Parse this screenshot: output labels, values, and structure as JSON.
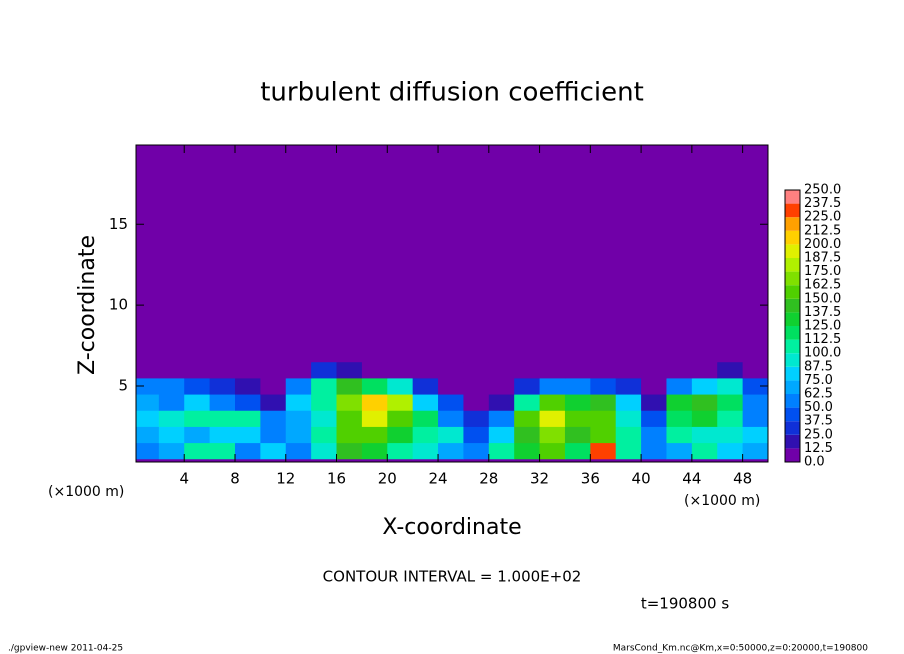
{
  "chart_data": {
    "type": "heatmap",
    "title": "turbulent diffusion coefficient",
    "x_label": "X-coordinate",
    "y_label": "Z-coordinate",
    "x_unit": "(×1000 m)",
    "x_unit_right": "(×1000 m)",
    "xlim": [
      0.2,
      50
    ],
    "ylim": [
      0.3,
      19.9
    ],
    "xticks": [
      4,
      8,
      12,
      16,
      20,
      24,
      28,
      32,
      36,
      40,
      44,
      48
    ],
    "yticks": [
      5,
      10,
      15
    ],
    "x": [
      1,
      3,
      5,
      7,
      9,
      11,
      13,
      15,
      17,
      19,
      21,
      23,
      25,
      27,
      29,
      31,
      33,
      35,
      37,
      39,
      41,
      43,
      45,
      47,
      49
    ],
    "z": [
      1,
      2,
      3,
      4,
      5,
      6,
      7
    ],
    "values": [
      [
        60,
        70,
        110,
        100,
        60,
        80,
        60,
        90,
        140,
        130,
        110,
        90,
        70,
        50,
        110,
        130,
        150,
        120,
        230,
        110,
        60,
        70,
        100,
        80,
        70
      ],
      [
        70,
        80,
        70,
        80,
        80,
        60,
        70,
        110,
        150,
        150,
        130,
        110,
        90,
        40,
        80,
        140,
        170,
        140,
        150,
        100,
        50,
        110,
        90,
        90,
        80
      ],
      [
        75,
        90,
        100,
        110,
        100,
        50,
        70,
        90,
        160,
        190,
        150,
        120,
        60,
        30,
        50,
        160,
        190,
        150,
        150,
        90,
        40,
        120,
        130,
        110,
        60
      ],
      [
        70,
        50,
        80,
        60,
        40,
        20,
        80,
        100,
        170,
        200,
        180,
        80,
        40,
        10,
        20,
        100,
        150,
        130,
        140,
        80,
        20,
        130,
        140,
        120,
        50
      ],
      [
        50,
        60,
        40,
        30,
        20,
        0,
        50,
        110,
        140,
        120,
        90,
        30,
        10,
        0,
        0,
        30,
        50,
        50,
        40,
        30,
        0,
        60,
        80,
        90,
        40
      ],
      [
        0,
        0,
        0,
        0,
        0,
        0,
        0,
        30,
        20,
        10,
        0,
        0,
        0,
        0,
        0,
        0,
        0,
        0,
        0,
        0,
        0,
        0,
        0,
        20,
        10
      ],
      [
        0,
        0,
        0,
        0,
        0,
        0,
        0,
        0,
        0,
        0,
        0,
        0,
        0,
        0,
        0,
        0,
        0,
        0,
        0,
        0,
        0,
        0,
        0,
        0,
        0
      ]
    ],
    "levels": [
      {
        "value": 0,
        "label": "0.0"
      },
      12.5,
      {
        "value": 25,
        "label": "25.0"
      },
      37.5,
      {
        "value": 50,
        "label": "50.0"
      },
      62.5,
      {
        "value": 75,
        "label": "75.0"
      },
      87.5,
      {
        "value": 100,
        "label": "100.0"
      },
      112.5,
      {
        "value": 125,
        "label": "125.0"
      },
      137.5,
      {
        "value": 150,
        "label": "150.0"
      },
      162.5,
      {
        "value": 175,
        "label": "175.0"
      },
      187.5,
      {
        "value": 200,
        "label": "200.0"
      },
      212.5,
      {
        "value": 225,
        "label": "225.0"
      },
      237.5,
      {
        "value": 250,
        "label": "250.0"
      }
    ],
    "colors": [
      "#7000a8",
      "#3010b0",
      "#1030d8",
      "#0050f0",
      "#0080ff",
      "#00a8ff",
      "#00d0ff",
      "#00e8d0",
      "#00f0a0",
      "#00e060",
      "#10d030",
      "#30c020",
      "#50d000",
      "#80e000",
      "#b0f000",
      "#e0f000",
      "#ffd000",
      "#ffa000",
      "#ff4000",
      "#ff8080"
    ],
    "contour_interval": "CONTOUR INTERVAL = 1.000E+02",
    "time_label": "t=190800 s",
    "footer_left": "./gpview-new   2011-04-25",
    "footer_right": "MarsCond_Km.nc@Km,x=0:50000,z=0:20000,t=190800"
  }
}
